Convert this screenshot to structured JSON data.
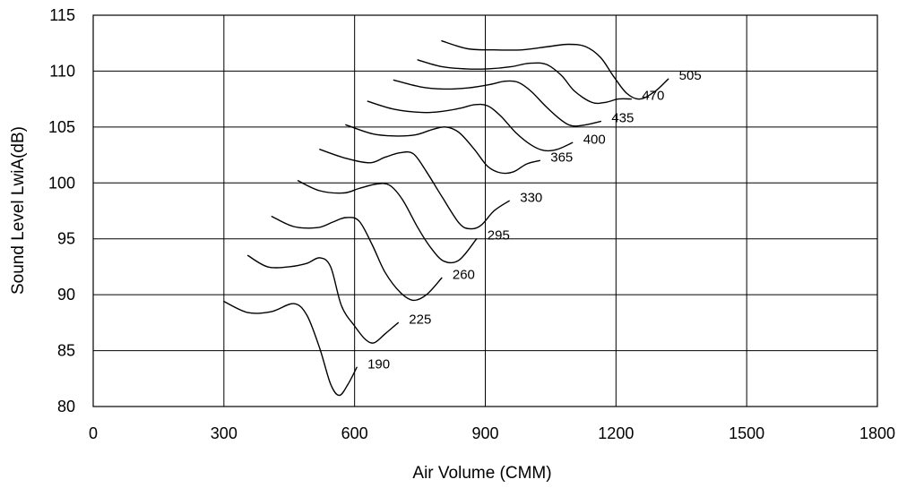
{
  "chart_data": {
    "type": "line",
    "title": "",
    "xlabel": "Air Volume (CMM)",
    "ylabel": "Sound Level LwiA(dB)",
    "xlim": [
      0,
      1800
    ],
    "ylim": [
      80,
      115
    ],
    "xticks": [
      "0",
      "300",
      "600",
      "900",
      "1200",
      "1500",
      "1800"
    ],
    "yticks": [
      "80",
      "85",
      "90",
      "95",
      "100",
      "105",
      "110",
      "115"
    ],
    "grid": true,
    "series": [
      {
        "name": "190",
        "points": [
          [
            300,
            89.4
          ],
          [
            355,
            88.4
          ],
          [
            410,
            88.5
          ],
          [
            460,
            89.2
          ],
          [
            490,
            88.2
          ],
          [
            520,
            85.2
          ],
          [
            545,
            82.0
          ],
          [
            565,
            81.0
          ],
          [
            585,
            82.0
          ],
          [
            605,
            83.5
          ]
        ]
      },
      {
        "name": "225",
        "points": [
          [
            355,
            93.5
          ],
          [
            400,
            92.5
          ],
          [
            450,
            92.5
          ],
          [
            490,
            92.8
          ],
          [
            520,
            93.3
          ],
          [
            545,
            92.5
          ],
          [
            570,
            89.0
          ],
          [
            600,
            87.2
          ],
          [
            625,
            86.0
          ],
          [
            645,
            85.7
          ],
          [
            670,
            86.5
          ],
          [
            700,
            87.5
          ]
        ]
      },
      {
        "name": "260",
        "points": [
          [
            410,
            97.0
          ],
          [
            460,
            96.1
          ],
          [
            515,
            96.0
          ],
          [
            550,
            96.5
          ],
          [
            580,
            96.9
          ],
          [
            610,
            96.6
          ],
          [
            640,
            94.5
          ],
          [
            670,
            92.0
          ],
          [
            705,
            90.2
          ],
          [
            735,
            89.5
          ],
          [
            765,
            90.0
          ],
          [
            800,
            91.5
          ]
        ]
      },
      {
        "name": "295",
        "points": [
          [
            470,
            100.2
          ],
          [
            520,
            99.3
          ],
          [
            575,
            99.1
          ],
          [
            610,
            99.5
          ],
          [
            650,
            99.9
          ],
          [
            680,
            99.8
          ],
          [
            710,
            98.5
          ],
          [
            745,
            96.0
          ],
          [
            775,
            94.2
          ],
          [
            805,
            93.0
          ],
          [
            840,
            93.1
          ],
          [
            880,
            95.0
          ]
        ]
      },
      {
        "name": "330",
        "points": [
          [
            520,
            103.0
          ],
          [
            580,
            102.2
          ],
          [
            635,
            101.8
          ],
          [
            670,
            102.3
          ],
          [
            705,
            102.7
          ],
          [
            735,
            102.6
          ],
          [
            765,
            101.0
          ],
          [
            800,
            98.8
          ],
          [
            840,
            96.4
          ],
          [
            865,
            95.9
          ],
          [
            890,
            96.2
          ],
          [
            920,
            97.5
          ],
          [
            955,
            98.4
          ]
        ]
      },
      {
        "name": "365",
        "points": [
          [
            580,
            105.2
          ],
          [
            640,
            104.4
          ],
          [
            690,
            104.2
          ],
          [
            740,
            104.3
          ],
          [
            780,
            104.8
          ],
          [
            810,
            105.0
          ],
          [
            840,
            104.5
          ],
          [
            875,
            103.0
          ],
          [
            905,
            101.5
          ],
          [
            935,
            100.9
          ],
          [
            965,
            101.0
          ],
          [
            995,
            101.7
          ],
          [
            1025,
            102.0
          ]
        ]
      },
      {
        "name": "400",
        "points": [
          [
            630,
            107.3
          ],
          [
            690,
            106.6
          ],
          [
            755,
            106.3
          ],
          [
            800,
            106.4
          ],
          [
            845,
            106.7
          ],
          [
            875,
            107.0
          ],
          [
            905,
            106.9
          ],
          [
            935,
            106.0
          ],
          [
            970,
            104.5
          ],
          [
            1005,
            103.4
          ],
          [
            1035,
            102.9
          ],
          [
            1065,
            103.0
          ],
          [
            1100,
            103.6
          ]
        ]
      },
      {
        "name": "435",
        "points": [
          [
            690,
            109.2
          ],
          [
            750,
            108.6
          ],
          [
            805,
            108.4
          ],
          [
            860,
            108.5
          ],
          [
            910,
            108.8
          ],
          [
            945,
            109.1
          ],
          [
            975,
            109.0
          ],
          [
            1005,
            108.2
          ],
          [
            1040,
            106.8
          ],
          [
            1075,
            105.6
          ],
          [
            1100,
            105.1
          ],
          [
            1130,
            105.2
          ],
          [
            1165,
            105.5
          ]
        ]
      },
      {
        "name": "470",
        "points": [
          [
            745,
            111.0
          ],
          [
            800,
            110.4
          ],
          [
            855,
            110.2
          ],
          [
            905,
            110.2
          ],
          [
            960,
            110.4
          ],
          [
            1000,
            110.7
          ],
          [
            1040,
            110.6
          ],
          [
            1075,
            109.6
          ],
          [
            1105,
            108.2
          ],
          [
            1145,
            107.2
          ],
          [
            1175,
            107.2
          ],
          [
            1205,
            107.5
          ],
          [
            1235,
            107.5
          ]
        ]
      },
      {
        "name": "505",
        "points": [
          [
            800,
            112.7
          ],
          [
            860,
            112.0
          ],
          [
            920,
            111.9
          ],
          [
            985,
            111.9
          ],
          [
            1045,
            112.2
          ],
          [
            1090,
            112.4
          ],
          [
            1130,
            112.2
          ],
          [
            1165,
            111.2
          ],
          [
            1195,
            109.5
          ],
          [
            1225,
            108.0
          ],
          [
            1255,
            107.5
          ],
          [
            1290,
            108.2
          ],
          [
            1320,
            109.3
          ]
        ]
      }
    ]
  }
}
